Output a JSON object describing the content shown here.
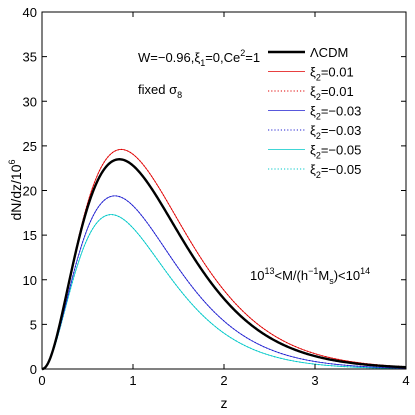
{
  "chart_data": {
    "type": "line",
    "xlabel": "z",
    "ylabel": "dN/dz/10",
    "ylabel_sup": "6",
    "xlim": [
      0,
      4
    ],
    "ylim": [
      0,
      40
    ],
    "xticks": [
      "0",
      "1",
      "2",
      "3",
      "4"
    ],
    "yticks": [
      "0",
      "5",
      "10",
      "15",
      "20",
      "25",
      "30",
      "35",
      "40"
    ],
    "grid": false,
    "legend_position": "top-right",
    "annotations": {
      "params_a": "W=−0.96,ξ",
      "params_a_sub": "1",
      "params_b": "=0,Ce",
      "params_b_sup": "2",
      "params_c": "=1",
      "fixed_a": "fixed σ",
      "fixed_sub": "8",
      "mass_a": "10",
      "mass_a_sup": "13",
      "mass_b": "<M/(h",
      "mass_b_sup": "−1",
      "mass_c": "M",
      "mass_c_sub": "s",
      "mass_d": ")<10",
      "mass_d_sup": "14"
    },
    "series": [
      {
        "name": "ΛCDM",
        "color": "#000000",
        "style": "solid",
        "width": 2.4,
        "peak_z": 0.85,
        "peak": 23.5,
        "alpha": 2.2
      },
      {
        "name": "ξ₂=0.01",
        "name_main": "ξ",
        "name_sub": "2",
        "name_tail": "=0.01",
        "color": "#e00000",
        "style": "solid",
        "width": 0.8,
        "peak_z": 0.87,
        "peak": 24.6,
        "alpha": 2.2
      },
      {
        "name": "ξ₂=0.01",
        "name_main": "ξ",
        "name_sub": "2",
        "name_tail": "=0.01",
        "color": "#e00000",
        "style": "dotted",
        "width": 1.1,
        "peak_z": 0.87,
        "peak": 24.6,
        "alpha": 2.2
      },
      {
        "name": "ξ₂=−0.03",
        "name_main": "ξ",
        "name_sub": "2",
        "name_tail": "=−0.03",
        "color": "#2020d0",
        "style": "solid",
        "width": 0.8,
        "peak_z": 0.8,
        "peak": 19.4,
        "alpha": 2.2
      },
      {
        "name": "ξ₂=−0.03",
        "name_main": "ξ",
        "name_sub": "2",
        "name_tail": "=−0.03",
        "color": "#2020d0",
        "style": "dotted",
        "width": 1.1,
        "peak_z": 0.8,
        "peak": 19.4,
        "alpha": 2.2
      },
      {
        "name": "ξ₂=−0.05",
        "name_main": "ξ",
        "name_sub": "2",
        "name_tail": "=−0.05",
        "color": "#00c8c8",
        "style": "solid",
        "width": 0.8,
        "peak_z": 0.76,
        "peak": 17.3,
        "alpha": 2.2
      },
      {
        "name": "ξ₂=−0.05",
        "name_main": "ξ",
        "name_sub": "2",
        "name_tail": "=−0.05",
        "color": "#00c8c8",
        "style": "dotted",
        "width": 1.1,
        "peak_z": 0.76,
        "peak": 17.3,
        "alpha": 2.2
      }
    ]
  }
}
